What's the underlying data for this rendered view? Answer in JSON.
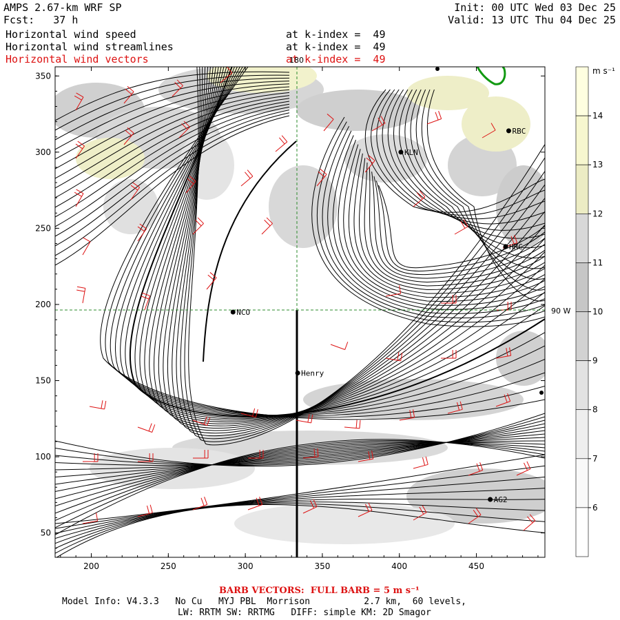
{
  "header": {
    "model": "AMPS 2.67-km WRF SP",
    "forecast": "Fcst:   37 h",
    "init": "Init: 00 UTC Wed 03 Dec 25",
    "valid": "Valid: 13 UTC Thu 04 Dec 25",
    "fields": [
      {
        "name": "Horizontal wind speed",
        "level": "at k-index =  49",
        "color": "#000000"
      },
      {
        "name": "Horizontal wind streamlines",
        "level": "at k-index =  49",
        "color": "#000000"
      },
      {
        "name": "Horizontal wind vectors",
        "level": "at k-index =  49",
        "color": "#dd1111"
      }
    ]
  },
  "map": {
    "x_ticks": [
      "200",
      "250",
      "300",
      "350",
      "400",
      "450"
    ],
    "y_ticks": [
      "350",
      "300",
      "250",
      "200",
      "150",
      "100",
      "50"
    ],
    "meridian_label": "180",
    "parallel_label": "90 W",
    "stations": [
      {
        "name": "RBC",
        "x": 471,
        "y": 314
      },
      {
        "name": "KLN",
        "x": 401,
        "y": 300
      },
      {
        "name": "HRC",
        "x": 469,
        "y": 238
      },
      {
        "name": "NCO",
        "x": 292,
        "y": 195
      },
      {
        "name": "Henry",
        "x": 334,
        "y": 155
      },
      {
        "name": "AG2",
        "x": 459,
        "y": 72
      }
    ]
  },
  "colorbar": {
    "units": "m s⁻¹",
    "labels": [
      "14",
      "13",
      "12",
      "11",
      "10",
      "9",
      "8",
      "7",
      "6"
    ],
    "colors": [
      "#ffffe0",
      "#f7f7cf",
      "#ececc4",
      "#d8d8d8",
      "#c6c6c6",
      "#d2d2d2",
      "#e2e2e2",
      "#eeeeee",
      "#f9f9f9",
      "#ffffff"
    ]
  },
  "footer": {
    "barb_note": "BARB VECTORS:  FULL BARB = 5 m s⁻¹",
    "model_info": "Model Info: V4.3.3   No Cu   MYJ PBL  Morrison          2.7 km,  60 levels,",
    "physics": "LW: RRTM SW: RRTMG   DIFF: simple KM: 2D Smagor"
  }
}
